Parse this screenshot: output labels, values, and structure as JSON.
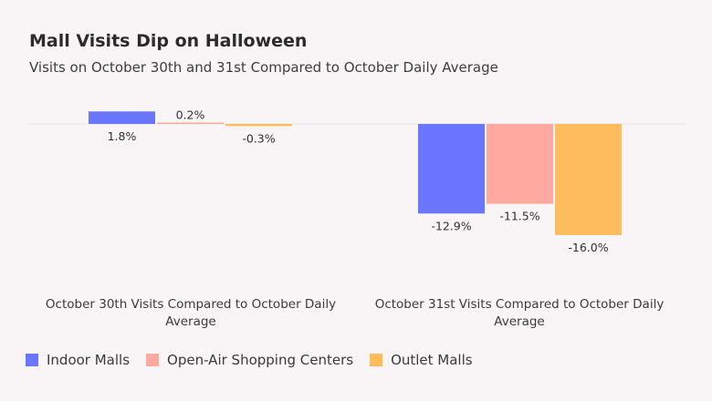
{
  "title": "Mall Visits Dip on Halloween",
  "subtitle": "Visits on October 30th and 31st Compared to October Daily Average",
  "chart_data": {
    "type": "bar",
    "categories": [
      "October 30th Visits Compared to October Daily Average",
      "October 31st Visits Compared to October Daily Average"
    ],
    "series": [
      {
        "name": "Indoor Malls",
        "values": [
          1.8,
          -12.9
        ],
        "labels": [
          "1.8%",
          "-12.9%"
        ],
        "color": "#6b76ff"
      },
      {
        "name": "Open-Air Shopping Centers",
        "values": [
          0.2,
          -11.5
        ],
        "labels": [
          "0.2%",
          "-11.5%"
        ],
        "color": "#ffaaa0"
      },
      {
        "name": "Outlet Malls",
        "values": [
          -0.3,
          -16.0
        ],
        "labels": [
          "-0.3%",
          "-16.0%"
        ],
        "color": "#ffbc5c"
      }
    ],
    "value_unit": "%",
    "ylim": [
      -16.0,
      1.8
    ],
    "legend_position": "bottom-left",
    "grid": false
  }
}
